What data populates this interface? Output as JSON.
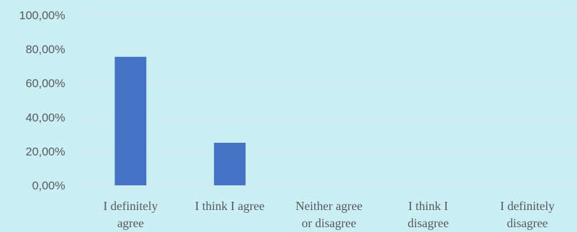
{
  "chart_data": {
    "type": "bar",
    "title": "",
    "xlabel": "",
    "ylabel": "",
    "categories": [
      [
        "I definitely",
        "agree"
      ],
      [
        "I think I agree"
      ],
      [
        "Neither agree",
        "or disagree"
      ],
      [
        "I think I",
        "disagree"
      ],
      [
        "I definitely",
        "disagree"
      ]
    ],
    "values": [
      75.5,
      25,
      0,
      0,
      0
    ],
    "ylim": [
      0,
      100
    ],
    "yticks": [
      0,
      20,
      40,
      60,
      80,
      100
    ],
    "ytick_labels": [
      "0,00%",
      "20,00%",
      "40,00%",
      "60,00%",
      "80,00%",
      "100,00%"
    ],
    "grid": true,
    "legend": "none",
    "bar_color": "#4472c4",
    "background_color": "#c9eef4"
  }
}
